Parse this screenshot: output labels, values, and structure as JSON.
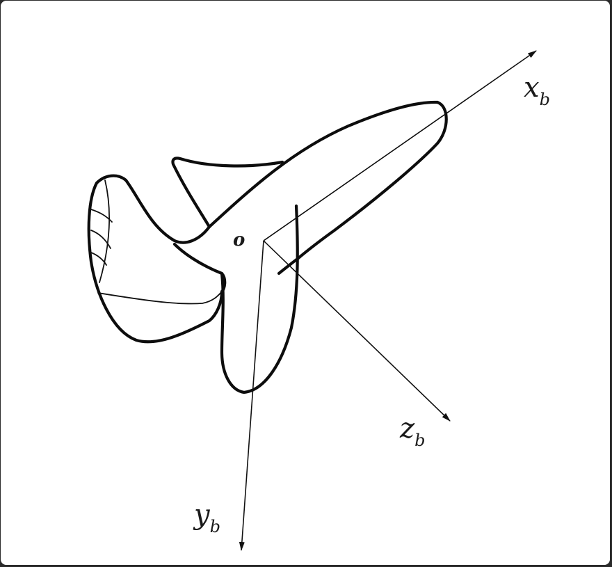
{
  "diagram": {
    "origin_label": "o",
    "axes": {
      "x": {
        "main": "x",
        "sub": "b"
      },
      "y": {
        "main": "y",
        "sub": "b"
      },
      "z": {
        "main": "z",
        "sub": "b"
      }
    }
  }
}
